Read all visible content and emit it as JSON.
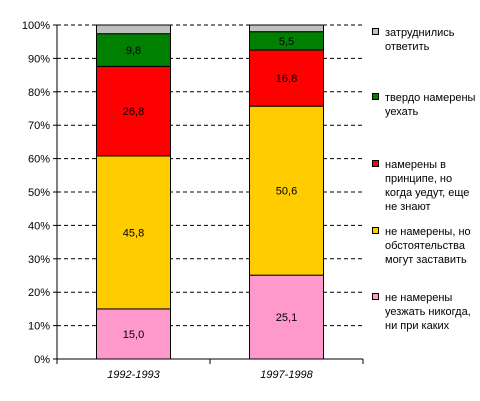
{
  "chart_data": {
    "type": "bar",
    "stacked": true,
    "categories": [
      "1992-1993",
      "1997-1998"
    ],
    "series": [
      {
        "name": "не намерены уезжать никогда, ни при каких",
        "color": "#ff99cc",
        "values": [
          15.0,
          25.1
        ],
        "labels": [
          "15,0",
          "25,1"
        ]
      },
      {
        "name": "не намерены, но обстоятельства могут заставить",
        "color": "#ffcc00",
        "values": [
          45.8,
          50.6
        ],
        "labels": [
          "45,8",
          "50,6"
        ]
      },
      {
        "name": "намерены в принципе, но когда уедут, еще не знают",
        "color": "#ff0000",
        "values": [
          26.8,
          16.8
        ],
        "labels": [
          "26,8",
          "16,8"
        ]
      },
      {
        "name": "твердо намерены уехать",
        "color": "#008000",
        "values": [
          9.8,
          5.5
        ],
        "labels": [
          "9,8",
          "5,5"
        ]
      },
      {
        "name": "затруднились ответить",
        "color": "#c0c0c0",
        "values": [
          2.6,
          2.0
        ],
        "labels": [
          "",
          ""
        ]
      }
    ],
    "y_ticks": [
      "0%",
      "10%",
      "20%",
      "30%",
      "40%",
      "50%",
      "60%",
      "70%",
      "80%",
      "90%",
      "100%"
    ],
    "ylim": [
      0,
      100
    ],
    "grid": true,
    "legend_position": "right"
  }
}
